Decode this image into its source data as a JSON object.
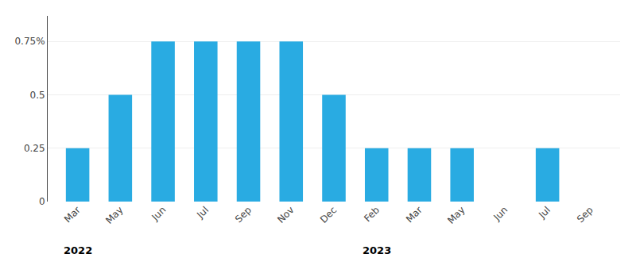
{
  "chart_data": {
    "type": "bar",
    "categories": [
      "Mar",
      "May",
      "Jun",
      "Jul",
      "Sep",
      "Nov",
      "Dec",
      "Feb",
      "Mar",
      "May",
      "Jun",
      "Jul",
      "Sep"
    ],
    "values": [
      0.25,
      0.5,
      0.75,
      0.75,
      0.75,
      0.75,
      0.5,
      0.25,
      0.25,
      0.25,
      0.0,
      0.25,
      0.0
    ],
    "color": "#29ABE2",
    "ylim": [
      0,
      0.87
    ],
    "yticks": [
      0,
      0.25,
      0.5,
      {
        "value": 0.75,
        "label": "0.75%"
      }
    ],
    "grid": true,
    "annotations": [
      {
        "text": "2022",
        "x": 0
      },
      {
        "text": "2023",
        "x": 7
      }
    ]
  }
}
